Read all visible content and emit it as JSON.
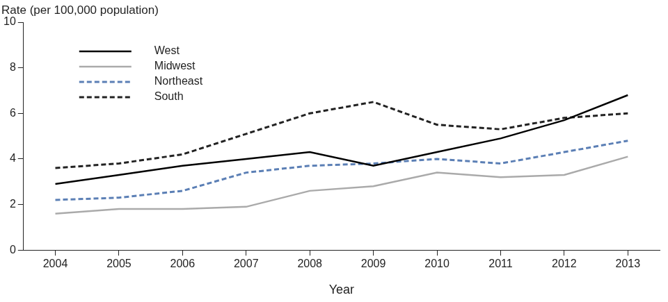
{
  "chart_data": {
    "type": "line",
    "x_label": "Year",
    "y_label": "Rate (per 100,000 population)",
    "categories": [
      "2004",
      "2005",
      "2006",
      "2007",
      "2008",
      "2009",
      "2010",
      "2011",
      "2012",
      "2013"
    ],
    "series": [
      {
        "name": "West",
        "color": "#000000",
        "line_style": "solid",
        "values": [
          2.9,
          3.3,
          3.7,
          4.0,
          4.3,
          3.7,
          4.3,
          4.9,
          5.7,
          6.8
        ]
      },
      {
        "name": "Midwest",
        "color": "#aaaaaa",
        "line_style": "solid",
        "values": [
          1.6,
          1.8,
          1.8,
          1.9,
          2.6,
          2.8,
          3.4,
          3.2,
          3.3,
          4.1
        ]
      },
      {
        "name": "Northeast",
        "color": "#5b7fb5",
        "line_style": "dashed",
        "values": [
          2.2,
          2.3,
          2.6,
          3.4,
          3.7,
          3.8,
          4.0,
          3.8,
          4.3,
          4.8
        ]
      },
      {
        "name": "South",
        "color": "#222222",
        "line_style": "dashed",
        "values": [
          3.6,
          3.8,
          4.2,
          5.1,
          6.0,
          6.5,
          5.5,
          5.3,
          5.8,
          6.0
        ]
      }
    ],
    "ylim": [
      0,
      10
    ],
    "yticks": [
      0,
      2,
      4,
      6,
      8,
      10
    ],
    "grid": false,
    "legend": "upper left"
  }
}
